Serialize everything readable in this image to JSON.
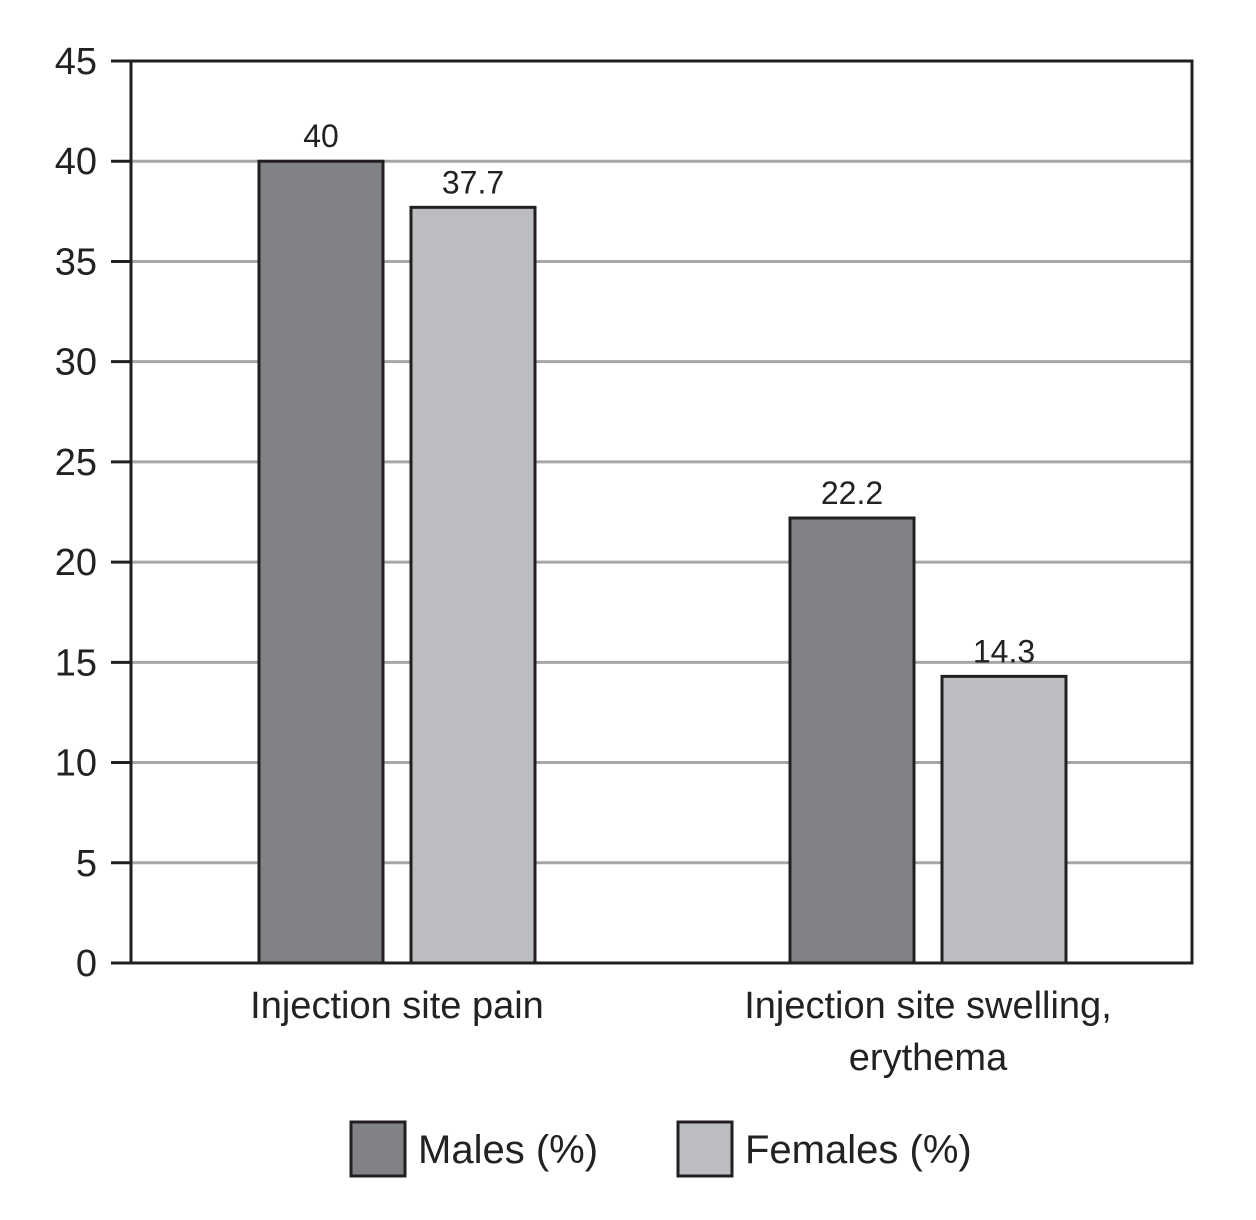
{
  "chart_data": {
    "type": "bar",
    "categories": [
      "Injection site pain",
      "Injection site swelling, erythema"
    ],
    "category_label_lines": [
      [
        "Injection site pain"
      ],
      [
        "Injection site swelling,",
        "erythema"
      ]
    ],
    "series": [
      {
        "name": "Males (%)",
        "values": [
          40,
          22.2
        ],
        "value_labels": [
          "40",
          "22.2"
        ],
        "color": "#818286"
      },
      {
        "name": "Females (%)",
        "values": [
          37.7,
          14.3
        ],
        "value_labels": [
          "37.7",
          "14.3"
        ],
        "color": "#bcbdc1"
      }
    ],
    "ylim": [
      0,
      45
    ],
    "yticks": [
      0,
      5,
      10,
      15,
      20,
      25,
      30,
      35,
      40,
      45
    ],
    "grid": true,
    "grid_color": "#a6a7aa",
    "axis_color": "#231f20",
    "legend_position": "bottom"
  }
}
